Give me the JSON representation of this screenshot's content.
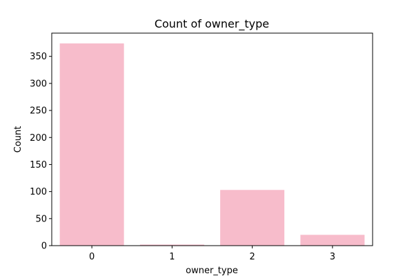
{
  "chart_data": {
    "type": "bar",
    "title": "Count of owner_type",
    "xlabel": "owner_type",
    "ylabel": "Count",
    "categories": [
      "0",
      "1",
      "2",
      "3"
    ],
    "values": [
      374,
      2,
      103,
      20
    ],
    "ylim": [
      0,
      393
    ],
    "yticks": [
      0,
      50,
      100,
      150,
      200,
      250,
      300,
      350
    ],
    "grid": false,
    "bar_color": "#f7bccb"
  }
}
